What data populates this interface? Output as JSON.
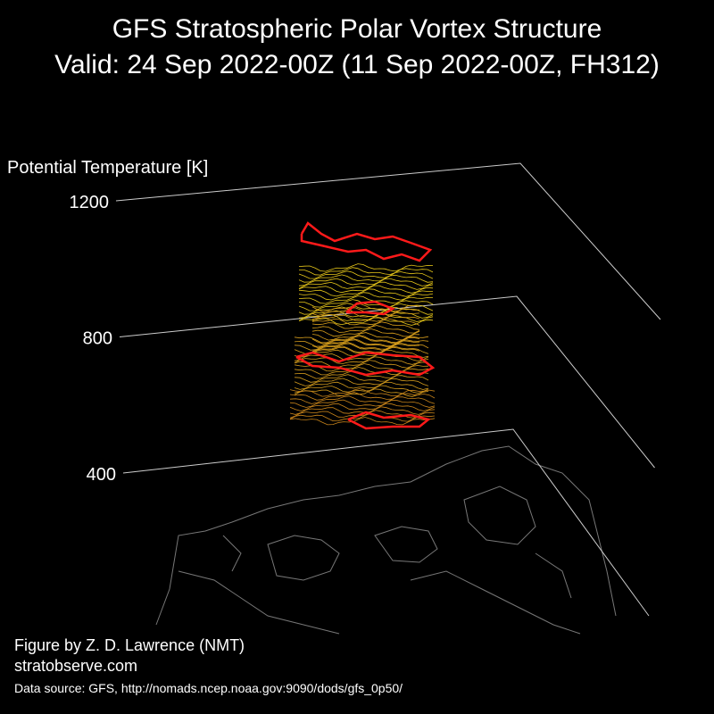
{
  "chart_data": {
    "type": "vortex3d",
    "title": "GFS Stratospheric Polar Vortex Structure",
    "subtitle": "Valid: 24 Sep 2022-00Z  (11 Sep 2022-00Z, FH312)",
    "zlabel": "Potential Temperature [K]",
    "zlim": [
      400,
      1200
    ],
    "zticks": [
      400,
      800,
      1200
    ],
    "credit": "Figure by Z. D. Lawrence (NMT)",
    "website": "stratobserve.com",
    "source": "Data source: GFS, http://nomads.ncep.noaa.gov:9090/dods/gfs_0p50/"
  }
}
